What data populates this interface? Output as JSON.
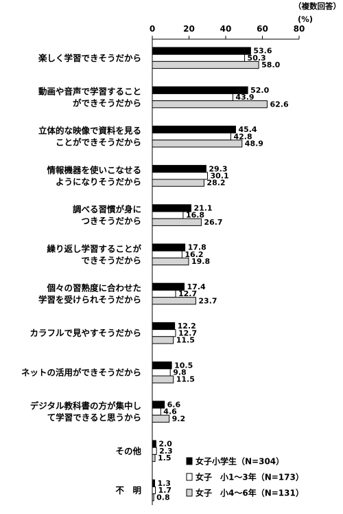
{
  "chart_data": {
    "type": "bar",
    "orientation": "horizontal",
    "note": "（複数回答）",
    "unit": "(%)",
    "xlim": [
      0,
      80
    ],
    "ticks": [
      0,
      20,
      40,
      60,
      80
    ],
    "grid": false,
    "legend_position": "bottom-right",
    "categories": [
      [
        "楽しく学習できそうだから"
      ],
      [
        "動画や音声で学習すること",
        "ができそうだから"
      ],
      [
        "立体的な映像で資料を見る",
        "ことができそうだから"
      ],
      [
        "情報機器を使いこなせる",
        "ようになりそうだから"
      ],
      [
        "調べる習慣が身に",
        "つきそうだから"
      ],
      [
        "繰り返し学習することが",
        "できそうだから"
      ],
      [
        "個々の習熟度に合わせた",
        "学習を受けられそうだから"
      ],
      [
        "カラフルで見やすそうだから"
      ],
      [
        "ネットの活用ができそうだから"
      ],
      [
        "デジタル教科書の方が集中し",
        "て学習できると思うから"
      ],
      [
        "その他"
      ],
      [
        "不　明"
      ]
    ],
    "series": [
      {
        "name": "女子小学生（N=304）",
        "color": "#000000",
        "values": [
          53.6,
          52.0,
          45.4,
          29.3,
          21.1,
          17.8,
          17.4,
          12.2,
          10.5,
          6.6,
          2.0,
          1.3
        ],
        "labels": [
          "53.6",
          "52.0",
          "45.4",
          "29.3",
          "21.1",
          "17.8",
          "17.4",
          "12.2",
          "10.5",
          "6.6",
          "2.0",
          "1.3"
        ]
      },
      {
        "name": "女子　小1～3年（N=173）",
        "color": "#ffffff",
        "values": [
          50.3,
          43.9,
          42.8,
          30.1,
          16.8,
          16.2,
          12.7,
          12.7,
          9.8,
          4.6,
          2.3,
          1.7
        ],
        "labels": [
          "50.3",
          "43.9",
          "42.8",
          "30.1",
          "16.8",
          "16.2",
          "12.7",
          "12.7",
          "9.8",
          "4.6",
          "2.3",
          "1.7"
        ]
      },
      {
        "name": "女子　小4～6年（N=131）",
        "color": "#d4d4d4",
        "values": [
          58.0,
          62.6,
          48.9,
          28.2,
          26.7,
          19.8,
          23.7,
          11.5,
          11.5,
          9.2,
          1.5,
          0.8
        ],
        "labels": [
          "58.0",
          "62.6",
          "48.9",
          "28.2",
          "26.7",
          "19.8",
          "23.7",
          "11.5",
          "11.5",
          "9.2",
          "1.5",
          "0.8"
        ]
      }
    ]
  }
}
